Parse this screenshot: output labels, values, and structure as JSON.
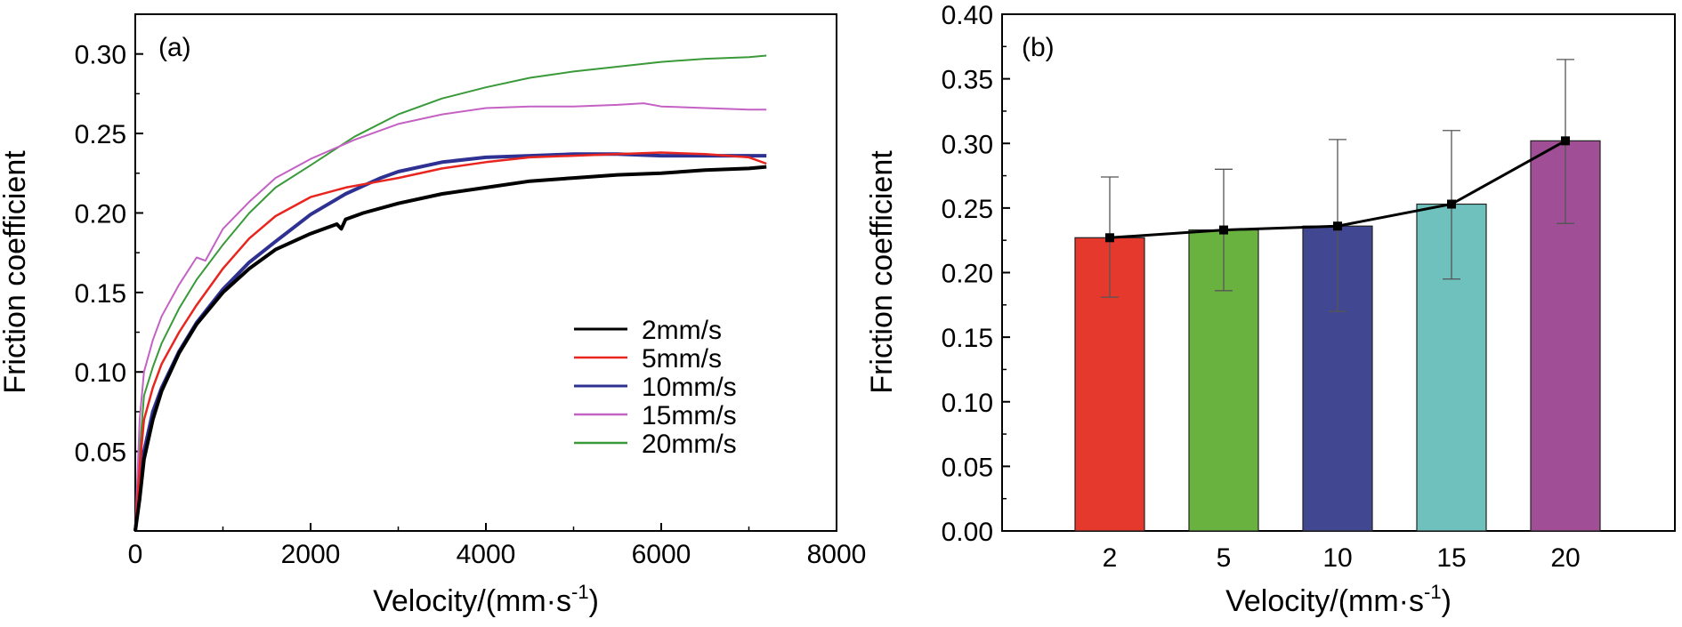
{
  "chart_data": [
    {
      "type": "line",
      "panel_label": "(a)",
      "xlabel": "Velocity/(mm·s",
      "xlabel_sup": "-1",
      "xlabel_close": ")",
      "ylabel": "Friction coefficient",
      "xlim": [
        0,
        8000
      ],
      "ylim": [
        0,
        0.325
      ],
      "xticks": [
        "0",
        "2000",
        "4000",
        "6000",
        "8000"
      ],
      "yticks": [
        "0.05",
        "0.10",
        "0.15",
        "0.20",
        "0.25",
        "0.30"
      ],
      "legend_position": "lower-right",
      "series": [
        {
          "name": "2mm/s",
          "color": "#000000",
          "width": 4,
          "x": [
            0,
            50,
            100,
            200,
            300,
            500,
            700,
            1000,
            1300,
            1600,
            2000,
            2300,
            2350,
            2400,
            2600,
            3000,
            3500,
            4000,
            4500,
            5000,
            5500,
            6000,
            6500,
            7000,
            7200
          ],
          "y": [
            0,
            0.02,
            0.045,
            0.07,
            0.088,
            0.112,
            0.13,
            0.15,
            0.165,
            0.177,
            0.187,
            0.193,
            0.19,
            0.196,
            0.2,
            0.206,
            0.212,
            0.216,
            0.22,
            0.222,
            0.224,
            0.225,
            0.227,
            0.228,
            0.229
          ]
        },
        {
          "name": "5mm/s",
          "color": "#e8251e",
          "width": 2.5,
          "x": [
            0,
            50,
            100,
            200,
            300,
            500,
            700,
            1000,
            1300,
            1600,
            2000,
            2400,
            2800,
            3000,
            3500,
            4000,
            4500,
            5000,
            5500,
            6000,
            6500,
            7000,
            7200
          ],
          "y": [
            0,
            0.04,
            0.07,
            0.09,
            0.105,
            0.125,
            0.142,
            0.165,
            0.184,
            0.198,
            0.21,
            0.216,
            0.22,
            0.222,
            0.228,
            0.232,
            0.235,
            0.236,
            0.237,
            0.238,
            0.237,
            0.235,
            0.231
          ]
        },
        {
          "name": "10mm/s",
          "color": "#2e3192",
          "width": 4,
          "x": [
            0,
            50,
            100,
            200,
            300,
            500,
            700,
            1000,
            1300,
            1600,
            2000,
            2400,
            2800,
            3000,
            3500,
            4000,
            4500,
            5000,
            5500,
            6000,
            6500,
            7000,
            7200
          ],
          "y": [
            0,
            0.025,
            0.05,
            0.075,
            0.09,
            0.113,
            0.131,
            0.152,
            0.169,
            0.182,
            0.199,
            0.212,
            0.222,
            0.226,
            0.232,
            0.235,
            0.236,
            0.237,
            0.237,
            0.236,
            0.236,
            0.236,
            0.236
          ]
        },
        {
          "name": "15mm/s",
          "color": "#c462c4",
          "width": 2,
          "x": [
            0,
            50,
            100,
            200,
            300,
            500,
            700,
            800,
            1000,
            1300,
            1600,
            2000,
            2500,
            3000,
            3500,
            4000,
            4500,
            5000,
            5500,
            5800,
            6000,
            6500,
            7000,
            7200
          ],
          "y": [
            0,
            0.07,
            0.1,
            0.12,
            0.135,
            0.155,
            0.172,
            0.17,
            0.19,
            0.207,
            0.222,
            0.234,
            0.246,
            0.256,
            0.262,
            0.266,
            0.267,
            0.267,
            0.268,
            0.269,
            0.267,
            0.266,
            0.265,
            0.265
          ]
        },
        {
          "name": "20mm/s",
          "color": "#3a9a3a",
          "width": 2,
          "x": [
            0,
            50,
            100,
            200,
            300,
            500,
            700,
            1000,
            1300,
            1600,
            2000,
            2500,
            3000,
            3500,
            4000,
            4500,
            5000,
            5500,
            6000,
            6500,
            7000,
            7200
          ],
          "y": [
            0,
            0.05,
            0.085,
            0.103,
            0.118,
            0.14,
            0.158,
            0.18,
            0.2,
            0.216,
            0.23,
            0.248,
            0.262,
            0.272,
            0.279,
            0.285,
            0.289,
            0.292,
            0.295,
            0.297,
            0.298,
            0.299
          ]
        }
      ]
    },
    {
      "type": "bar",
      "panel_label": "(b)",
      "xlabel": "Velocity/(mm·s",
      "xlabel_sup": "-1",
      "xlabel_close": ")",
      "ylabel": "Friction coefficient",
      "ylim": [
        0,
        0.4
      ],
      "yticks": [
        "0.00",
        "0.05",
        "0.10",
        "0.15",
        "0.20",
        "0.25",
        "0.30",
        "0.35",
        "0.40"
      ],
      "categories": [
        "2",
        "5",
        "10",
        "15",
        "20"
      ],
      "values": [
        0.227,
        0.233,
        0.236,
        0.253,
        0.302
      ],
      "error_low": [
        0.181,
        0.186,
        0.17,
        0.195,
        0.238
      ],
      "error_high": [
        0.274,
        0.28,
        0.303,
        0.31,
        0.365
      ],
      "colors": [
        "#e5392e",
        "#6ab23f",
        "#414891",
        "#6ec1bd",
        "#a04f96"
      ],
      "line_color": "#000000"
    }
  ]
}
